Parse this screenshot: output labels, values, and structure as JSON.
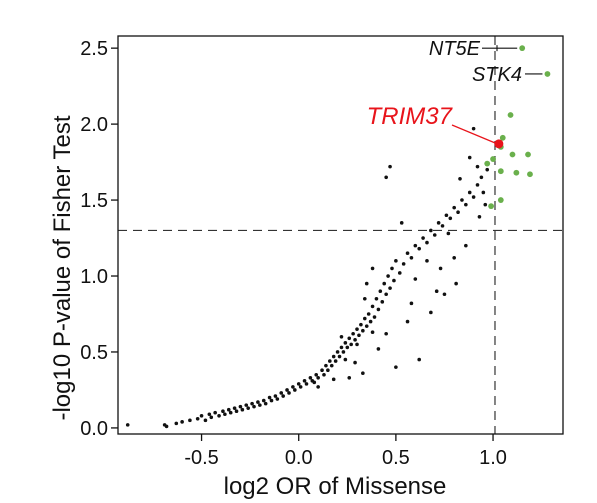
{
  "chart_data": {
    "type": "scatter",
    "xlabel": "log2 OR of Missense",
    "ylabel": "-log10 P-value of Fisher Test",
    "xlim": [
      -0.93,
      1.36
    ],
    "ylim": [
      -0.04,
      2.58
    ],
    "xticks": [
      -0.5,
      0.0,
      0.5,
      1.0
    ],
    "xtick_labels": [
      "-0.5",
      "0.0",
      "0.5",
      "1.0"
    ],
    "yticks": [
      0.0,
      0.5,
      1.0,
      1.5,
      2.0,
      2.5
    ],
    "ytick_labels": [
      "0.0",
      "0.5",
      "1.0",
      "1.5",
      "2.0",
      "2.5"
    ],
    "threshold_x": 1.01,
    "threshold_y": 1.3,
    "grid": false,
    "colors": {
      "background_points": "#111111",
      "significant_points": "#6ab04c",
      "highlight_point": "#e8141b",
      "highlight_label": "#e8141b",
      "threshold_line": "#333333"
    },
    "significant_points": [
      {
        "x": 1.15,
        "y": 2.5
      },
      {
        "x": 1.28,
        "y": 2.33
      },
      {
        "x": 1.09,
        "y": 2.06
      },
      {
        "x": 1.0,
        "y": 1.77
      },
      {
        "x": 1.1,
        "y": 1.8
      },
      {
        "x": 1.18,
        "y": 1.8
      },
      {
        "x": 1.04,
        "y": 1.69
      },
      {
        "x": 1.12,
        "y": 1.68
      },
      {
        "x": 1.19,
        "y": 1.67
      },
      {
        "x": 0.99,
        "y": 1.46
      },
      {
        "x": 1.04,
        "y": 1.5
      },
      {
        "x": 1.04,
        "y": 1.85
      },
      {
        "x": 1.05,
        "y": 1.91
      },
      {
        "x": 0.97,
        "y": 1.74
      }
    ],
    "highlight_point": {
      "x": 1.03,
      "y": 1.87,
      "label": "TRIM37"
    },
    "labeled_points": [
      {
        "label": "NT5E",
        "x": 1.15,
        "y": 2.5
      },
      {
        "label": "STK4",
        "x": 1.28,
        "y": 2.33
      },
      {
        "label": "TRIM37",
        "x": 1.03,
        "y": 1.87
      }
    ],
    "background_points": [
      [
        -0.88,
        0.02
      ],
      [
        -0.69,
        0.02
      ],
      [
        -0.68,
        0.01
      ],
      [
        -0.63,
        0.03
      ],
      [
        -0.6,
        0.04
      ],
      [
        -0.56,
        0.05
      ],
      [
        -0.52,
        0.06
      ],
      [
        -0.5,
        0.08
      ],
      [
        -0.48,
        0.05
      ],
      [
        -0.46,
        0.09
      ],
      [
        -0.45,
        0.07
      ],
      [
        -0.43,
        0.1
      ],
      [
        -0.41,
        0.08
      ],
      [
        -0.39,
        0.11
      ],
      [
        -0.38,
        0.09
      ],
      [
        -0.36,
        0.12
      ],
      [
        -0.35,
        0.1
      ],
      [
        -0.33,
        0.13
      ],
      [
        -0.32,
        0.11
      ],
      [
        -0.3,
        0.14
      ],
      [
        -0.29,
        0.12
      ],
      [
        -0.27,
        0.15
      ],
      [
        -0.26,
        0.13
      ],
      [
        -0.24,
        0.16
      ],
      [
        -0.23,
        0.14
      ],
      [
        -0.21,
        0.17
      ],
      [
        -0.2,
        0.15
      ],
      [
        -0.18,
        0.18
      ],
      [
        -0.17,
        0.16
      ],
      [
        -0.15,
        0.2
      ],
      [
        -0.14,
        0.18
      ],
      [
        -0.12,
        0.21
      ],
      [
        -0.11,
        0.19
      ],
      [
        -0.09,
        0.23
      ],
      [
        -0.08,
        0.21
      ],
      [
        -0.06,
        0.25
      ],
      [
        -0.05,
        0.23
      ],
      [
        -0.03,
        0.27
      ],
      [
        -0.02,
        0.25
      ],
      [
        0.0,
        0.29
      ],
      [
        0.01,
        0.27
      ],
      [
        0.03,
        0.31
      ],
      [
        0.04,
        0.29
      ],
      [
        0.06,
        0.33
      ],
      [
        0.07,
        0.31
      ],
      [
        0.09,
        0.35
      ],
      [
        0.1,
        0.33
      ],
      [
        0.12,
        0.38
      ],
      [
        0.13,
        0.35
      ],
      [
        0.14,
        0.41
      ],
      [
        0.15,
        0.38
      ],
      [
        0.16,
        0.44
      ],
      [
        0.17,
        0.41
      ],
      [
        0.18,
        0.47
      ],
      [
        0.19,
        0.44
      ],
      [
        0.2,
        0.5
      ],
      [
        0.21,
        0.47
      ],
      [
        0.22,
        0.53
      ],
      [
        0.23,
        0.5
      ],
      [
        0.24,
        0.56
      ],
      [
        0.25,
        0.53
      ],
      [
        0.26,
        0.59
      ],
      [
        0.27,
        0.55
      ],
      [
        0.28,
        0.62
      ],
      [
        0.29,
        0.58
      ],
      [
        0.3,
        0.65
      ],
      [
        0.31,
        0.61
      ],
      [
        0.32,
        0.68
      ],
      [
        0.33,
        0.64
      ],
      [
        0.34,
        0.72
      ],
      [
        0.35,
        0.67
      ],
      [
        0.36,
        0.75
      ],
      [
        0.37,
        0.7
      ],
      [
        0.38,
        0.8
      ],
      [
        0.39,
        0.73
      ],
      [
        0.4,
        0.85
      ],
      [
        0.41,
        0.78
      ],
      [
        0.42,
        0.9
      ],
      [
        0.43,
        0.83
      ],
      [
        0.44,
        0.95
      ],
      [
        0.45,
        0.88
      ],
      [
        0.46,
        1.0
      ],
      [
        0.47,
        0.92
      ],
      [
        0.48,
        1.05
      ],
      [
        0.49,
        0.97
      ],
      [
        0.5,
        1.1
      ],
      [
        0.52,
        1.02
      ],
      [
        0.54,
        1.08
      ],
      [
        0.56,
        1.15
      ],
      [
        0.58,
        1.12
      ],
      [
        0.6,
        1.2
      ],
      [
        0.62,
        1.18
      ],
      [
        0.64,
        1.25
      ],
      [
        0.66,
        1.22
      ],
      [
        0.68,
        1.3
      ],
      [
        0.7,
        1.27
      ],
      [
        0.72,
        1.35
      ],
      [
        0.74,
        1.33
      ],
      [
        0.76,
        1.4
      ],
      [
        0.78,
        1.38
      ],
      [
        0.8,
        1.45
      ],
      [
        0.82,
        1.42
      ],
      [
        0.84,
        1.5
      ],
      [
        0.86,
        1.47
      ],
      [
        0.88,
        1.55
      ],
      [
        0.9,
        1.52
      ],
      [
        0.92,
        1.6
      ],
      [
        0.94,
        1.65
      ],
      [
        0.97,
        1.7
      ],
      [
        0.18,
        0.32
      ],
      [
        0.22,
        0.6
      ],
      [
        0.24,
        0.45
      ],
      [
        0.3,
        0.55
      ],
      [
        0.34,
        0.85
      ],
      [
        0.35,
        0.95
      ],
      [
        0.38,
        1.05
      ],
      [
        0.45,
        1.65
      ],
      [
        0.47,
        1.72
      ],
      [
        0.53,
        1.35
      ],
      [
        0.56,
        0.7
      ],
      [
        0.6,
        0.98
      ],
      [
        0.62,
        0.45
      ],
      [
        0.66,
        1.1
      ],
      [
        0.71,
        0.9
      ],
      [
        0.75,
        0.88
      ],
      [
        0.8,
        1.12
      ],
      [
        0.83,
        1.64
      ],
      [
        0.86,
        1.2
      ],
      [
        0.9,
        1.97
      ],
      [
        0.93,
        1.39
      ],
      [
        0.95,
        1.55
      ],
      [
        0.96,
        1.47
      ],
      [
        0.5,
        0.4
      ],
      [
        0.45,
        0.62
      ],
      [
        0.41,
        0.52
      ],
      [
        0.58,
        0.82
      ],
      [
        0.68,
        0.76
      ],
      [
        0.73,
        1.05
      ],
      [
        0.88,
        1.78
      ],
      [
        0.92,
        1.72
      ],
      [
        0.77,
        1.28
      ],
      [
        0.81,
        0.95
      ],
      [
        0.1,
        0.27
      ],
      [
        0.08,
        0.3
      ],
      [
        0.26,
        0.33
      ],
      [
        0.29,
        0.43
      ],
      [
        0.33,
        0.36
      ],
      [
        0.38,
        0.63
      ]
    ]
  }
}
